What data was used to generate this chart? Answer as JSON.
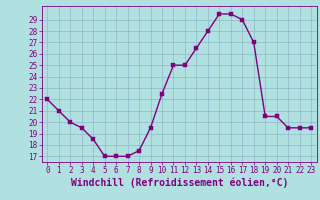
{
  "x": [
    0,
    1,
    2,
    3,
    4,
    5,
    6,
    7,
    8,
    9,
    10,
    11,
    12,
    13,
    14,
    15,
    16,
    17,
    18,
    19,
    20,
    21,
    22,
    23
  ],
  "y": [
    22,
    21,
    20,
    19.5,
    18.5,
    17,
    17,
    17,
    17.5,
    19.5,
    22.5,
    25,
    25,
    26.5,
    28,
    29.5,
    29.5,
    29,
    27,
    20.5,
    20.5,
    19.5,
    19.5,
    19.5
  ],
  "line_color": "#800080",
  "marker_color": "#800080",
  "bg_color": "#b0e0e0",
  "grid_color": "#90b8c8",
  "xlabel": "Windchill (Refroidissement éolien,°C)",
  "xlabel_color": "#800080",
  "ylim_min": 16.5,
  "ylim_max": 30.2,
  "xlim_min": -0.5,
  "xlim_max": 23.5,
  "yticks": [
    17,
    18,
    19,
    20,
    21,
    22,
    23,
    24,
    25,
    26,
    27,
    28,
    29
  ],
  "xticks": [
    0,
    1,
    2,
    3,
    4,
    5,
    6,
    7,
    8,
    9,
    10,
    11,
    12,
    13,
    14,
    15,
    16,
    17,
    18,
    19,
    20,
    21,
    22,
    23
  ],
  "tick_color": "#800080",
  "tick_fontsize": 5.5,
  "xlabel_fontsize": 7.0,
  "line_width": 1.0,
  "marker_size": 2.5
}
